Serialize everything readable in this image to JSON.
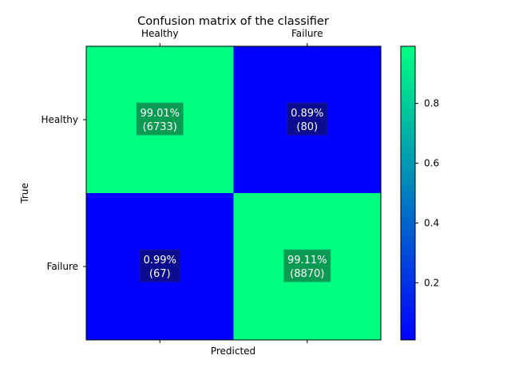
{
  "chart_data": {
    "type": "heatmap",
    "title": "Confusion matrix of the classifier",
    "xlabel": "Predicted",
    "ylabel": "True",
    "x_categories": [
      "Healthy",
      "Failure"
    ],
    "y_categories": [
      "Healthy",
      "Failure"
    ],
    "cells": [
      {
        "row": 0,
        "col": 0,
        "value": 0.9901,
        "label_pct": "99.01%",
        "label_count": "(6733)"
      },
      {
        "row": 0,
        "col": 1,
        "value": 0.0089,
        "label_pct": "0.89%",
        "label_count": "(80)"
      },
      {
        "row": 1,
        "col": 0,
        "value": 0.0099,
        "label_pct": "0.99%",
        "label_count": "(67)"
      },
      {
        "row": 1,
        "col": 1,
        "value": 0.9911,
        "label_pct": "99.11%",
        "label_count": "(8870)"
      }
    ],
    "colormap": "winter",
    "colorbar": {
      "range": [
        0.0089,
        0.9911
      ],
      "ticks": [
        0.2,
        0.4,
        0.6,
        0.8
      ],
      "tick_labels": [
        "0.2",
        "0.4",
        "0.6",
        "0.8"
      ]
    },
    "x_ticks_position": "top",
    "grid": false,
    "colors": {
      "low": "#0000ff",
      "high": "#00ff80",
      "label_box_high": "#0b9a52",
      "label_box_low": "#0b0b8f",
      "label_text": "#ffffff"
    }
  }
}
